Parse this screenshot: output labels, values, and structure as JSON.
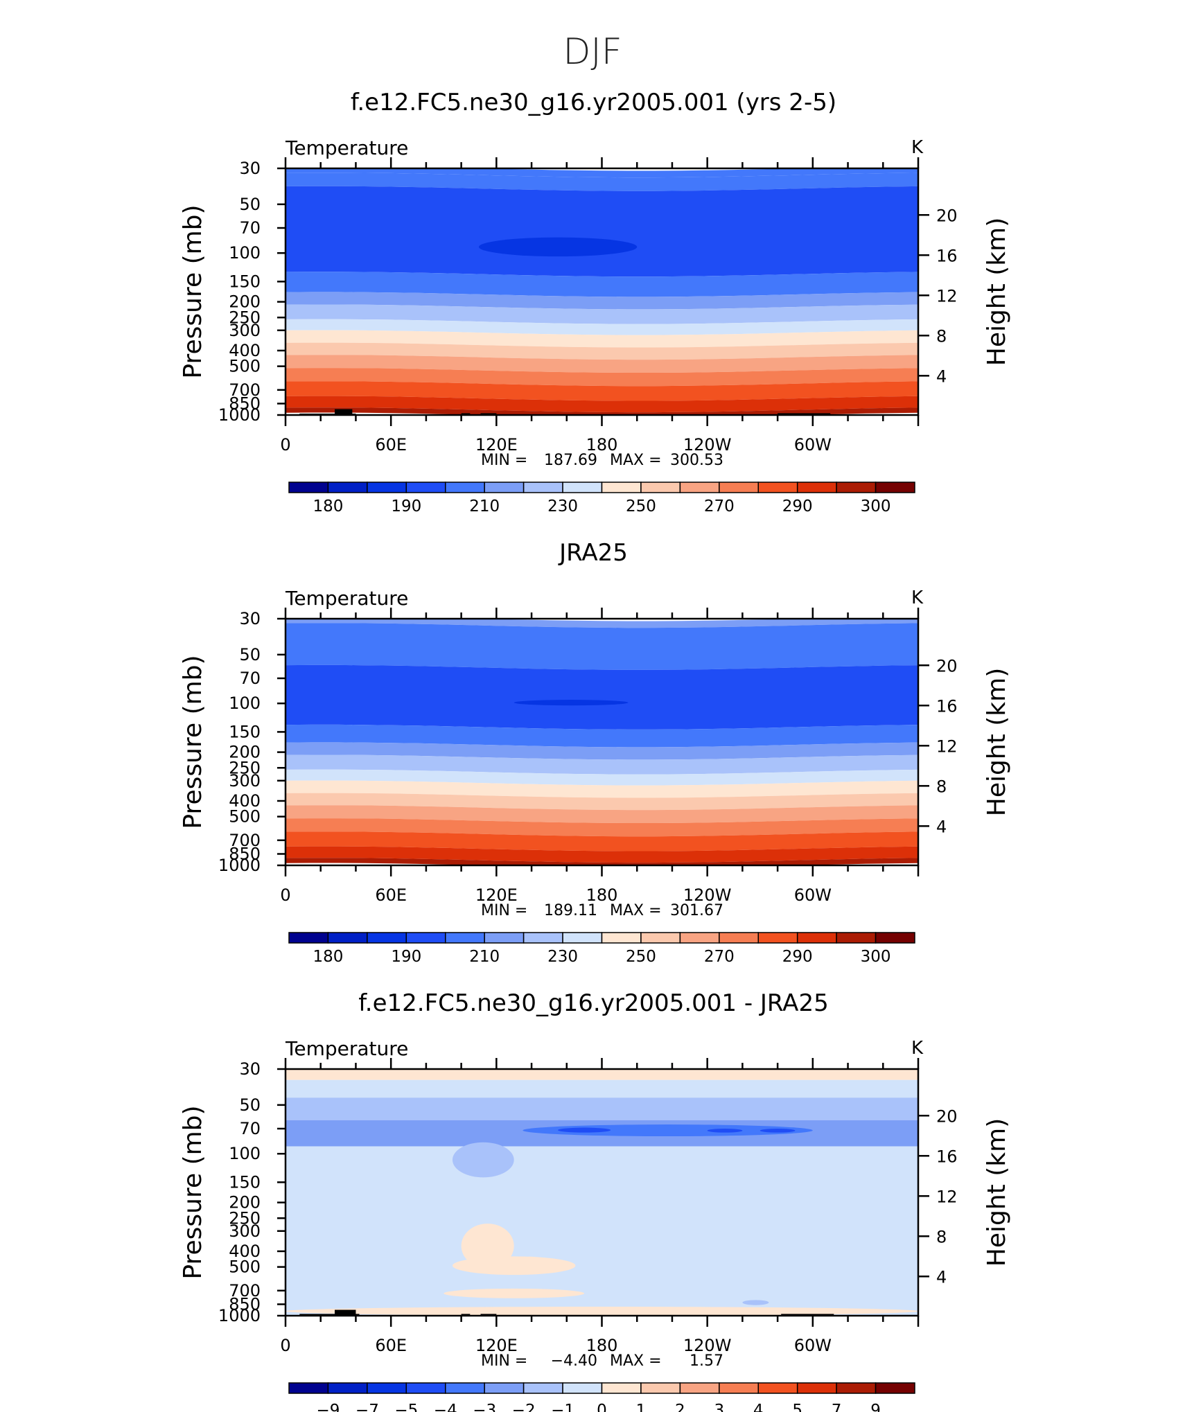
{
  "page_title": "DJF",
  "colors": {
    "axis": "#000000",
    "land": "#000000",
    "abs_palette": [
      "#00028f",
      "#0020c6",
      "#0635e3",
      "#1f4df5",
      "#4378fb",
      "#7c9ef6",
      "#a9c2fa",
      "#d1e3fb",
      "#fee6d2",
      "#fbc9ae",
      "#f8a483",
      "#f67e53",
      "#f25220",
      "#dc3008",
      "#ab1c04",
      "#750101"
    ],
    "diff_palette": [
      "#00028f",
      "#0020c6",
      "#0635e3",
      "#1f4df5",
      "#4378fb",
      "#7c9ef6",
      "#a9c2fa",
      "#d1e3fb",
      "#fee6d2",
      "#fbc9ae",
      "#f8a483",
      "#f67e53",
      "#f25220",
      "#dc3008",
      "#ab1c04",
      "#750101"
    ]
  },
  "chart_data": [
    {
      "id": "model",
      "type": "contour",
      "title": "f.e12.FC5.ne30_g16.yr2005.001 (yrs 2-5)",
      "left_string": "Temperature",
      "right_string": "K",
      "ylabel": "Pressure (mb)",
      "ylabel_right": "Height (km)",
      "xticks": [
        "0",
        "60E",
        "120E",
        "180",
        "120W",
        "60W"
      ],
      "xtick_lons": [
        0,
        60,
        120,
        180,
        240,
        300
      ],
      "xlim": [
        0,
        360
      ],
      "yticks": [
        "30",
        "50",
        "70",
        "100",
        "150",
        "200",
        "250",
        "300",
        "400",
        "500",
        "700",
        "850",
        "1000"
      ],
      "ytick_values": [
        30,
        50,
        70,
        100,
        150,
        200,
        250,
        300,
        400,
        500,
        700,
        850,
        1000
      ],
      "ylim": [
        1000,
        30
      ],
      "height_ticks": [
        "20",
        "16",
        "12",
        "8",
        "4"
      ],
      "height_values": [
        20,
        16,
        12,
        8,
        4
      ],
      "stats": {
        "min_label": "MIN =",
        "min": "187.69",
        "max_label": "MAX =",
        "max": "300.53"
      },
      "colorbar_labels": [
        "180",
        "190",
        "210",
        "230",
        "250",
        "270",
        "290",
        "300"
      ],
      "layers": [
        {
          "p_top": 30,
          "p_bot": 33,
          "class": 4
        },
        {
          "p_top": 33,
          "p_bot": 40,
          "class": 4
        },
        {
          "p_top": 40,
          "p_bot": 135,
          "class": 3
        },
        {
          "p_top": 135,
          "p_bot": 180,
          "class": 4
        },
        {
          "p_top": 180,
          "p_bot": 215,
          "class": 5
        },
        {
          "p_top": 215,
          "p_bot": 265,
          "class": 6
        },
        {
          "p_top": 265,
          "p_bot": 310,
          "class": 7
        },
        {
          "p_top": 310,
          "p_bot": 370,
          "class": 8
        },
        {
          "p_top": 370,
          "p_bot": 440,
          "class": 9
        },
        {
          "p_top": 440,
          "p_bot": 530,
          "class": 10
        },
        {
          "p_top": 530,
          "p_bot": 640,
          "class": 11
        },
        {
          "p_top": 640,
          "p_bot": 790,
          "class": 12
        },
        {
          "p_top": 790,
          "p_bot": 930,
          "class": 13
        },
        {
          "p_top": 930,
          "p_bot": 1000,
          "class": 14
        }
      ],
      "blobs": [
        {
          "lon_start": 110,
          "lon_end": 200,
          "p_top": 80,
          "p_bot": 105,
          "class": 2
        }
      ],
      "land": [
        {
          "lon_start": 8,
          "lon_end": 40,
          "p_top": 980
        },
        {
          "lon_start": 28,
          "lon_end": 38,
          "p_top": 920
        },
        {
          "lon_start": 100,
          "lon_end": 105,
          "p_top": 975
        },
        {
          "lon_start": 111,
          "lon_end": 120,
          "p_top": 975
        },
        {
          "lon_start": 280,
          "lon_end": 310,
          "p_top": 975
        }
      ]
    },
    {
      "id": "obs",
      "type": "contour",
      "title": "JRA25",
      "left_string": "Temperature",
      "right_string": "K",
      "ylabel": "Pressure (mb)",
      "ylabel_right": "Height (km)",
      "xticks": [
        "0",
        "60E",
        "120E",
        "180",
        "120W",
        "60W"
      ],
      "xtick_lons": [
        0,
        60,
        120,
        180,
        240,
        300
      ],
      "xlim": [
        0,
        360
      ],
      "yticks": [
        "30",
        "50",
        "70",
        "100",
        "150",
        "200",
        "250",
        "300",
        "400",
        "500",
        "700",
        "850",
        "1000"
      ],
      "ytick_values": [
        30,
        50,
        70,
        100,
        150,
        200,
        250,
        300,
        400,
        500,
        700,
        850,
        1000
      ],
      "ylim": [
        1000,
        30
      ],
      "height_ticks": [
        "20",
        "16",
        "12",
        "8",
        "4"
      ],
      "height_values": [
        20,
        16,
        12,
        8,
        4
      ],
      "stats": {
        "min_label": "MIN =",
        "min": "189.11",
        "max_label": "MAX =",
        "max": "301.67"
      },
      "colorbar_labels": [
        "180",
        "190",
        "210",
        "230",
        "250",
        "270",
        "290",
        "300"
      ],
      "layers": [
        {
          "p_top": 30,
          "p_bot": 33,
          "class": 5
        },
        {
          "p_top": 33,
          "p_bot": 60,
          "class": 4
        },
        {
          "p_top": 60,
          "p_bot": 140,
          "class": 3
        },
        {
          "p_top": 140,
          "p_bot": 180,
          "class": 4
        },
        {
          "p_top": 180,
          "p_bot": 215,
          "class": 5
        },
        {
          "p_top": 215,
          "p_bot": 265,
          "class": 6
        },
        {
          "p_top": 265,
          "p_bot": 310,
          "class": 7
        },
        {
          "p_top": 310,
          "p_bot": 370,
          "class": 8
        },
        {
          "p_top": 370,
          "p_bot": 440,
          "class": 9
        },
        {
          "p_top": 440,
          "p_bot": 530,
          "class": 10
        },
        {
          "p_top": 530,
          "p_bot": 640,
          "class": 11
        },
        {
          "p_top": 640,
          "p_bot": 790,
          "class": 12
        },
        {
          "p_top": 790,
          "p_bot": 930,
          "class": 13
        },
        {
          "p_top": 930,
          "p_bot": 1000,
          "class": 14
        }
      ],
      "blobs": [
        {
          "lon_start": 130,
          "lon_end": 195,
          "p_top": 95,
          "p_bot": 103,
          "class": 2
        }
      ],
      "land": []
    },
    {
      "id": "diff",
      "type": "contour",
      "title": "f.e12.FC5.ne30_g16.yr2005.001 - JRA25",
      "left_string": "Temperature",
      "right_string": "K",
      "ylabel": "Pressure (mb)",
      "ylabel_right": "Height (km)",
      "xticks": [
        "0",
        "60E",
        "120E",
        "180",
        "120W",
        "60W"
      ],
      "xtick_lons": [
        0,
        60,
        120,
        180,
        240,
        300
      ],
      "xlim": [
        0,
        360
      ],
      "yticks": [
        "30",
        "50",
        "70",
        "100",
        "150",
        "200",
        "250",
        "300",
        "400",
        "500",
        "700",
        "850",
        "1000"
      ],
      "ytick_values": [
        30,
        50,
        70,
        100,
        150,
        200,
        250,
        300,
        400,
        500,
        700,
        850,
        1000
      ],
      "ylim": [
        1000,
        30
      ],
      "height_ticks": [
        "20",
        "16",
        "12",
        "8",
        "4"
      ],
      "height_values": [
        20,
        16,
        12,
        8,
        4
      ],
      "stats": {
        "min_label": "MIN =",
        "min": "−4.40",
        "max_label": "MAX =",
        "max": "1.57"
      },
      "colorbar_labels": [
        "−9",
        "−7",
        "−5",
        "−4",
        "−3",
        "−2",
        "−1",
        "0",
        "1",
        "2",
        "3",
        "4",
        "5",
        "7",
        "9"
      ],
      "layers": [
        {
          "p_top": 30,
          "p_bot": 35,
          "class": 8
        },
        {
          "p_top": 35,
          "p_bot": 45,
          "class": 7
        },
        {
          "p_top": 45,
          "p_bot": 62,
          "class": 6
        },
        {
          "p_top": 62,
          "p_bot": 90,
          "class": 5
        },
        {
          "p_top": 90,
          "p_bot": 1000,
          "class": 7
        }
      ],
      "blobs": [
        {
          "lon_start": 95,
          "lon_end": 130,
          "p_top": 85,
          "p_bot": 140,
          "class": 6
        },
        {
          "lon_start": 135,
          "lon_end": 300,
          "p_top": 66,
          "p_bot": 78,
          "class": 4
        },
        {
          "lon_start": 155,
          "lon_end": 185,
          "p_top": 69,
          "p_bot": 74,
          "class": 3
        },
        {
          "lon_start": 240,
          "lon_end": 260,
          "p_top": 70,
          "p_bot": 74,
          "class": 3
        },
        {
          "lon_start": 270,
          "lon_end": 290,
          "p_top": 70,
          "p_bot": 74,
          "class": 3
        },
        {
          "lon_start": 100,
          "lon_end": 130,
          "p_top": 270,
          "p_bot": 510,
          "class": 8
        },
        {
          "lon_start": 95,
          "lon_end": 165,
          "p_top": 430,
          "p_bot": 560,
          "class": 8
        },
        {
          "lon_start": 90,
          "lon_end": 170,
          "p_top": 680,
          "p_bot": 780,
          "class": 8
        },
        {
          "lon_start": 0,
          "lon_end": 360,
          "p_top": 880,
          "p_bot": 1000,
          "class": 8
        },
        {
          "lon_start": 260,
          "lon_end": 275,
          "p_top": 800,
          "p_bot": 860,
          "class": 6
        }
      ],
      "land": [
        {
          "lon_start": 8,
          "lon_end": 42,
          "p_top": 975
        },
        {
          "lon_start": 28,
          "lon_end": 40,
          "p_top": 920
        },
        {
          "lon_start": 100,
          "lon_end": 105,
          "p_top": 975
        },
        {
          "lon_start": 111,
          "lon_end": 120,
          "p_top": 975
        },
        {
          "lon_start": 282,
          "lon_end": 312,
          "p_top": 975
        }
      ]
    }
  ]
}
